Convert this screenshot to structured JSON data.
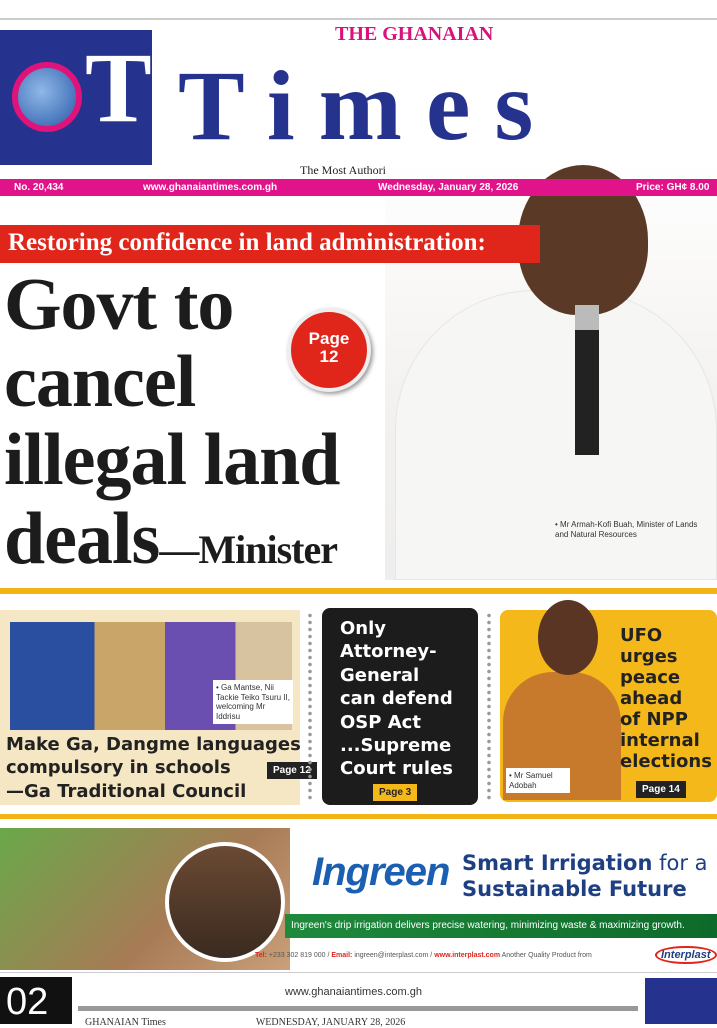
{
  "masthead": {
    "prefix": "THE GHANAIAN",
    "title": "Times",
    "logo_text": "GT",
    "tagline": "The Most Authoritative Newspaper"
  },
  "infobar": {
    "issue": "No. 20,434",
    "website": "www.ghanaiantimes.com.gh",
    "date": "Wednesday, January 28, 2026",
    "price": "Price: GH¢ 8.00"
  },
  "lead": {
    "kicker": "Restoring confidence in land administration:",
    "headline_lines": [
      "Govt to",
      "cancel",
      "illegal land",
      "deals"
    ],
    "attribution": "—Minister",
    "page_badge": [
      "Page",
      "12"
    ],
    "photo_caption": "• Mr Armah-Kofi Buah, Minister of Lands and Natural Resources"
  },
  "stories": [
    {
      "headline_lines": [
        "Make Ga, Dangme languages",
        "compulsory in schools",
        "—Ga Traditional Council"
      ],
      "page": "Page 12",
      "caption": "• Ga Mantse, Nii Tackie Teiko Tsuru II, welcoming Mr Iddrisu"
    },
    {
      "headline_lines": [
        "Only",
        "Attorney-",
        "General",
        "can defend",
        "OSP Act",
        "...Supreme",
        "Court rules"
      ],
      "page": "Page 3"
    },
    {
      "headline_lines": [
        "UFO",
        "urges",
        "peace",
        "ahead",
        "of NPP",
        "internal",
        "elections"
      ],
      "page": "Page 14",
      "caption": "• Mr Samuel Adobah"
    }
  ],
  "ad": {
    "brand": "Ingreen",
    "headline_bold": "Smart Irrigation",
    "headline_rest": " for a",
    "headline_line2": "Sustainable Future",
    "tagline": "Ingreen's drip irrigation delivers precise watering, minimizing waste & maximizing growth.",
    "contact_tel_label": "Tel:",
    "contact_tel": " +233 302 819 000 / ",
    "contact_email_label": "Email:",
    "contact_email": " ingreen@interplast.com / ",
    "contact_web": "www.interplast.com",
    "contact_more": "  Another Quality Product from",
    "partner": "Interplast"
  },
  "footer": {
    "page_number": "02",
    "website": "www.ghanaiantimes.com.gh",
    "paper": "GHANAIAN Times",
    "date": "WEDNESDAY, JANUARY 28, 2026"
  },
  "colors": {
    "brand_blue": "#25338f",
    "magenta": "#e0138a",
    "red": "#e0251b",
    "yellow": "#f2b316"
  }
}
